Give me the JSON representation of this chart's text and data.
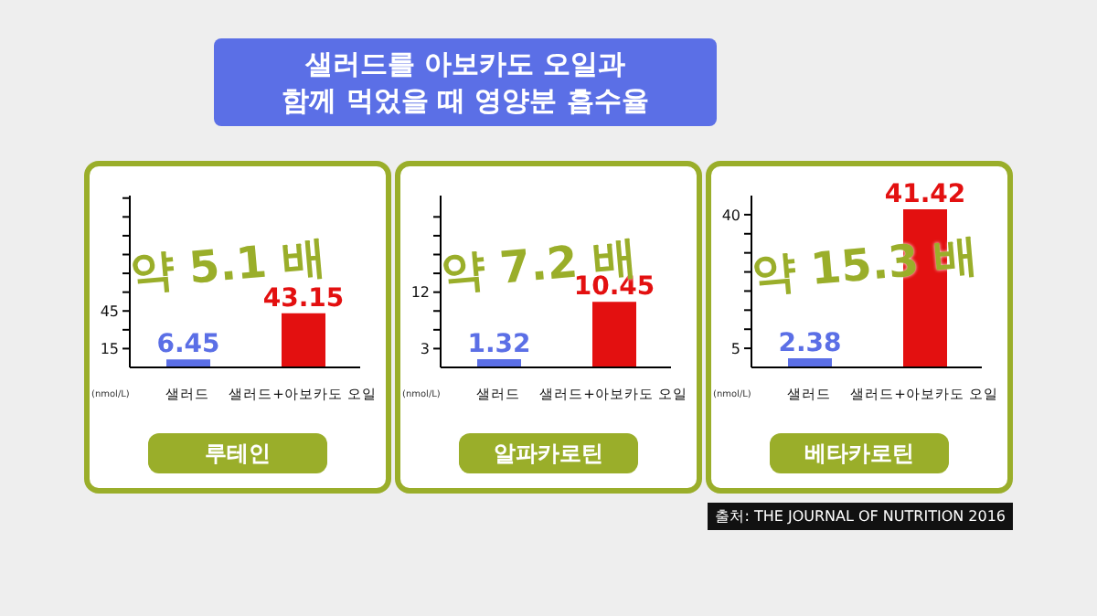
{
  "chart_data": [
    {
      "type": "bar",
      "title": "샐러드를 아보카도 오일과\n함께 먹었을 때 영양분 흡수율",
      "categories": [
        "샐러드",
        "샐러드+아보카도 오일"
      ],
      "values": [
        6.45,
        43.15
      ],
      "colors": [
        "#5b6fe6",
        "#e31010"
      ],
      "data_labels": true,
      "ylim": [
        0,
        137
      ],
      "yticks": [
        15,
        {
          "value": 30,
          "label": null
        },
        45,
        {
          "value": 60,
          "label": null
        },
        {
          "value": 75,
          "label": null
        },
        {
          "value": 90,
          "label": null
        },
        {
          "value": 105,
          "label": null
        },
        {
          "value": 120,
          "label": null
        },
        {
          "value": 135,
          "label": null
        }
      ],
      "ylabel": "(nmol/L)",
      "xlabel": "루테인",
      "annotations": [
        "약 5.1 배"
      ],
      "grid": false,
      "legend": false
    },
    {
      "type": "bar",
      "categories": [
        "샐러드",
        "샐러드+아보카도 오일"
      ],
      "values": [
        1.32,
        10.45
      ],
      "colors": [
        "#5b6fe6",
        "#e31010"
      ],
      "data_labels": true,
      "ylim": [
        0,
        27.4
      ],
      "yticks": [
        3,
        {
          "value": 6,
          "label": null
        },
        {
          "value": 9,
          "label": null
        },
        12,
        {
          "value": 15,
          "label": null
        },
        {
          "value": 18,
          "label": null
        },
        {
          "value": 21,
          "label": null
        },
        {
          "value": 24,
          "label": null
        }
      ],
      "ylabel": "(nmol/L)",
      "xlabel": "알파카로틴",
      "annotations": [
        "약 7.2 배"
      ],
      "grid": false,
      "legend": false
    },
    {
      "type": "bar",
      "categories": [
        "샐러드",
        "샐러드+아보카도 오일"
      ],
      "values": [
        2.38,
        41.42
      ],
      "colors": [
        "#5b6fe6",
        "#e31010"
      ],
      "data_labels": true,
      "ylim": [
        0,
        45
      ],
      "yticks": [
        5,
        {
          "value": 10,
          "label": null
        },
        {
          "value": 15,
          "label": null
        },
        {
          "value": 20,
          "label": null
        },
        {
          "value": 25,
          "label": null
        },
        {
          "value": 30,
          "label": null
        },
        {
          "value": 35,
          "label": null
        },
        40
      ],
      "ylabel": "(nmol/L)",
      "xlabel": "베타카로틴",
      "annotations": [
        "약 15.3 배",
        "출처: THE JOURNAL OF NUTRITION 2016"
      ],
      "grid": false,
      "legend": false
    }
  ]
}
